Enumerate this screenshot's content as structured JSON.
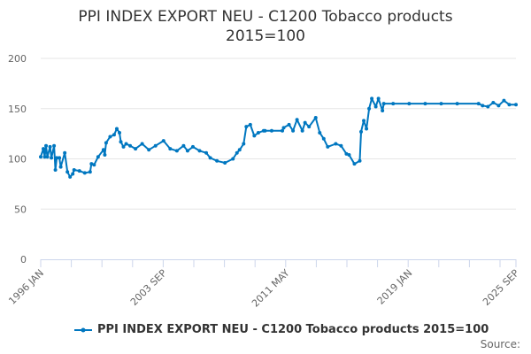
{
  "chart_data": {
    "type": "line",
    "title_lines": [
      "PPI INDEX EXPORT NEU - C1200 Tobacco products",
      "2015=100"
    ],
    "xlabel": "",
    "ylabel": "",
    "ylim": [
      0,
      200
    ],
    "yticks": [
      "0",
      "50",
      "100",
      "150",
      "200"
    ],
    "xlim": [
      "1996-01",
      "2025-09"
    ],
    "xtick_labels": [
      {
        "date": "1996-01",
        "label": "1996 JAN"
      },
      {
        "date": "2003-09",
        "label": "2003 SEP"
      },
      {
        "date": "2011-05",
        "label": "2011 MAY"
      },
      {
        "date": "2019-01",
        "label": "2019 JAN"
      },
      {
        "date": "2025-09",
        "label": "2025 SEP"
      }
    ],
    "grid": true,
    "legend_placement": "bottom",
    "color": "#0077c0",
    "series": [
      {
        "name": "PPI INDEX EXPORT NEU - C1200 Tobacco products 2015=100",
        "points": [
          [
            "1996-01",
            102
          ],
          [
            "1996-03",
            110
          ],
          [
            "1996-04",
            102
          ],
          [
            "1996-05",
            113
          ],
          [
            "1996-06",
            102
          ],
          [
            "1996-08",
            112
          ],
          [
            "1996-09",
            101
          ],
          [
            "1996-11",
            113
          ],
          [
            "1996-12",
            89
          ],
          [
            "1997-01",
            101
          ],
          [
            "1997-03",
            101
          ],
          [
            "1997-04",
            92
          ],
          [
            "1997-07",
            106
          ],
          [
            "1997-09",
            87
          ],
          [
            "1997-11",
            82
          ],
          [
            "1998-01",
            85
          ],
          [
            "1998-02",
            89
          ],
          [
            "1998-06",
            88
          ],
          [
            "1998-10",
            86
          ],
          [
            "1999-02",
            87
          ],
          [
            "1999-03",
            95
          ],
          [
            "1999-05",
            94
          ],
          [
            "1999-08",
            102
          ],
          [
            "1999-12",
            109
          ],
          [
            "2000-01",
            104
          ],
          [
            "2000-02",
            116
          ],
          [
            "2000-05",
            122
          ],
          [
            "2000-08",
            124
          ],
          [
            "2000-10",
            130
          ],
          [
            "2000-12",
            126
          ],
          [
            "2001-01",
            117
          ],
          [
            "2001-03",
            112
          ],
          [
            "2001-05",
            115
          ],
          [
            "2001-08",
            113
          ],
          [
            "2001-12",
            110
          ],
          [
            "2002-05",
            115
          ],
          [
            "2002-10",
            109
          ],
          [
            "2003-03",
            113
          ],
          [
            "2003-09",
            118
          ],
          [
            "2004-02",
            110
          ],
          [
            "2004-07",
            108
          ],
          [
            "2004-12",
            113
          ],
          [
            "2005-03",
            108
          ],
          [
            "2005-07",
            112
          ],
          [
            "2005-12",
            108
          ],
          [
            "2006-05",
            106
          ],
          [
            "2006-08",
            101
          ],
          [
            "2007-01",
            98
          ],
          [
            "2007-07",
            96
          ],
          [
            "2008-01",
            100
          ],
          [
            "2008-04",
            106
          ],
          [
            "2008-06",
            109
          ],
          [
            "2008-09",
            115
          ],
          [
            "2008-11",
            132
          ],
          [
            "2009-02",
            134
          ],
          [
            "2009-05",
            123
          ],
          [
            "2009-08",
            126
          ],
          [
            "2009-12",
            128
          ],
          [
            "2010-01",
            128
          ],
          [
            "2010-06",
            128
          ],
          [
            "2011-02",
            128
          ],
          [
            "2011-03",
            131
          ],
          [
            "2011-07",
            134
          ],
          [
            "2011-10",
            128
          ],
          [
            "2012-01",
            139
          ],
          [
            "2012-05",
            128
          ],
          [
            "2012-07",
            136
          ],
          [
            "2012-10",
            132
          ],
          [
            "2013-03",
            141
          ],
          [
            "2013-06",
            126
          ],
          [
            "2013-09",
            120
          ],
          [
            "2013-12",
            112
          ],
          [
            "2014-06",
            115
          ],
          [
            "2014-10",
            113
          ],
          [
            "2015-02",
            105
          ],
          [
            "2015-04",
            104
          ],
          [
            "2015-08",
            95
          ],
          [
            "2015-12",
            98
          ],
          [
            "2016-01",
            127
          ],
          [
            "2016-03",
            138
          ],
          [
            "2016-05",
            130
          ],
          [
            "2016-07",
            150
          ],
          [
            "2016-09",
            160
          ],
          [
            "2016-12",
            152
          ],
          [
            "2017-02",
            160
          ],
          [
            "2017-05",
            148
          ],
          [
            "2017-06",
            155
          ],
          [
            "2018-01",
            155
          ],
          [
            "2019-01",
            155
          ],
          [
            "2020-01",
            155
          ],
          [
            "2021-01",
            155
          ],
          [
            "2022-01",
            155
          ],
          [
            "2023-05",
            155
          ],
          [
            "2023-08",
            153
          ],
          [
            "2023-12",
            152
          ],
          [
            "2024-04",
            156
          ],
          [
            "2024-08",
            153
          ],
          [
            "2024-12",
            158
          ],
          [
            "2025-04",
            154
          ],
          [
            "2025-09",
            154
          ]
        ]
      }
    ]
  },
  "footer": {
    "source_label": "Source:"
  }
}
